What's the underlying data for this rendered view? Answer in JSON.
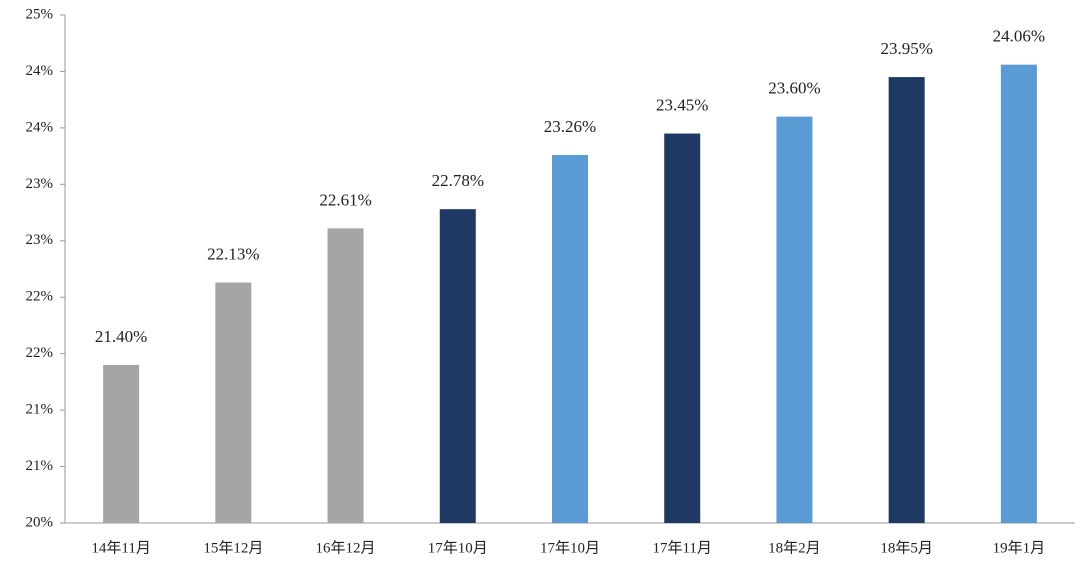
{
  "chart_data": {
    "type": "bar",
    "categories": [
      "14年11月",
      "15年12月",
      "16年12月",
      "17年10月",
      "17年10月",
      "17年11月",
      "18年2月",
      "18年5月",
      "19年1月"
    ],
    "values": [
      21.4,
      22.13,
      22.61,
      22.78,
      23.26,
      23.45,
      23.6,
      23.95,
      24.06
    ],
    "value_labels": [
      "21.40%",
      "22.13%",
      "22.61%",
      "22.78%",
      "23.26%",
      "23.45%",
      "23.60%",
      "23.95%",
      "24.06%"
    ],
    "colors": [
      "#a5a5a5",
      "#a5a5a5",
      "#a5a5a5",
      "#1f3864",
      "#5b9bd5",
      "#1f3864",
      "#5b9bd5",
      "#1f3864",
      "#5b9bd5"
    ],
    "ylim": [
      20,
      24.5
    ],
    "yticks": [
      {
        "value": 20,
        "label": "20%"
      },
      {
        "value": 20.5,
        "label": "21%"
      },
      {
        "value": 21,
        "label": "21%"
      },
      {
        "value": 21.5,
        "label": "22%"
      },
      {
        "value": 22,
        "label": "22%"
      },
      {
        "value": 22.5,
        "label": "23%"
      },
      {
        "value": 23,
        "label": "23%"
      },
      {
        "value": 23.5,
        "label": "24%"
      },
      {
        "value": 24,
        "label": "24%"
      },
      {
        "value": 24.5,
        "label": "25%"
      }
    ],
    "grid": false
  }
}
